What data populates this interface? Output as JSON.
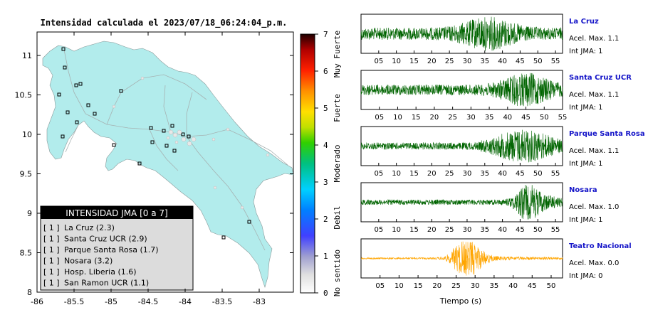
{
  "title": "Intensidad calculada el 2023/07/18_06:24:04_p.m.",
  "map": {
    "lat_ticks": [
      "11",
      "10.5",
      "10",
      "9.5",
      "9",
      "8.5",
      "8"
    ],
    "lon_ticks": [
      "-86",
      "-85.5",
      "-85",
      "-84.5",
      "-84",
      "-83.5",
      "-83"
    ],
    "land_color": "#b2ecec",
    "ocean_color": "#ffffff",
    "legend": {
      "header": "INTENSIDAD JMA [0 a 7]",
      "items": [
        {
          "level": "[ 1 ]",
          "name": "La Cruz (2.3)"
        },
        {
          "level": "[ 1 ]",
          "name": "Santa Cruz UCR (2.9)"
        },
        {
          "level": "[ 1 ]",
          "name": "Parque Santa Rosa (1.7)"
        },
        {
          "level": "[ 1 ]",
          "name": "Nosara (3.2)"
        },
        {
          "level": "[ 1 ]",
          "name": "Hosp. Liberia (1.6)"
        },
        {
          "level": "[ 1 ]",
          "name": "San Ramon UCR (1.1)"
        }
      ]
    }
  },
  "colorbar": {
    "ticks": [
      "0",
      "1",
      "2",
      "3",
      "4",
      "5",
      "6",
      "7"
    ],
    "categories": [
      "No sentido",
      "Debil",
      "Moderado",
      "Fuerte",
      "Muy Fuerte"
    ]
  },
  "stations": [
    {
      "name": "La Cruz",
      "acel": "Acel. Max. 1.1",
      "jma": "Int JMA: 1",
      "color": "#006400"
    },
    {
      "name": "Santa Cruz UCR",
      "acel": "Acel. Max. 1.1",
      "jma": "Int JMA: 1",
      "color": "#006400"
    },
    {
      "name": "Parque Santa Rosa",
      "acel": "Acel. Max. 1.1",
      "jma": "Int JMA: 1",
      "color": "#006400"
    },
    {
      "name": "Nosara",
      "acel": "Acel. Max. 1.0",
      "jma": "Int JMA: 1",
      "color": "#006400"
    },
    {
      "name": "Teatro Nacional",
      "acel": "Acel. Max. 0.0",
      "jma": "Int JMA: 0",
      "color": "#ffa500"
    }
  ],
  "traces": {
    "tick_labels": [
      "05",
      "10",
      "15",
      "20",
      "25",
      "30",
      "35",
      "40",
      "45",
      "50",
      "55"
    ],
    "xlabel": "Tiempo (s)"
  }
}
